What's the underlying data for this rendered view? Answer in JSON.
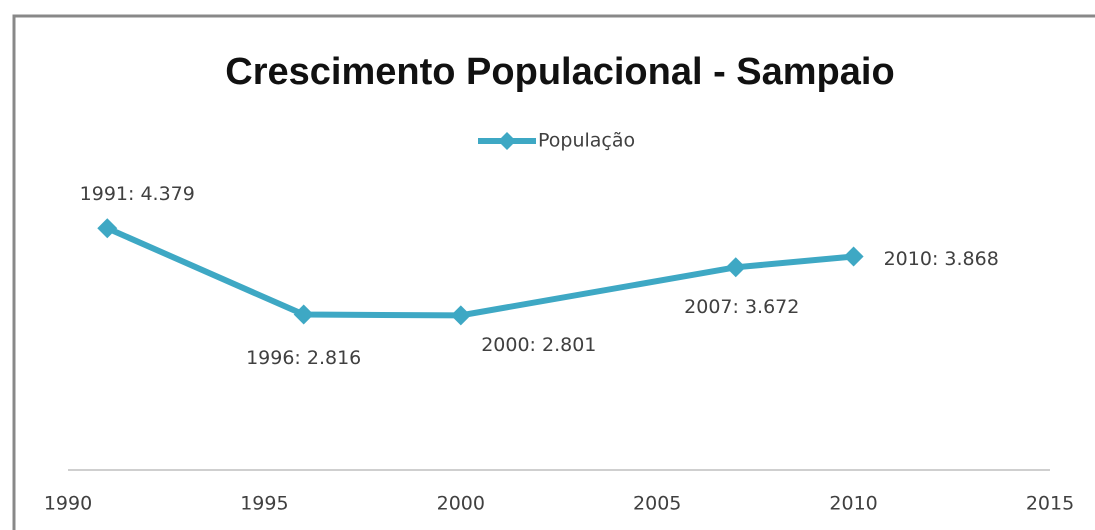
{
  "chart_data": {
    "type": "line",
    "title": "Crescimento Populacional - Sampaio",
    "x": [
      1991,
      1996,
      2000,
      2007,
      2010
    ],
    "series": [
      {
        "name": "População",
        "color": "#3ea8c4",
        "values": [
          4379,
          2816,
          2801,
          3672,
          3868
        ],
        "value_labels": [
          "1991:  4.379",
          "1996:  2.816",
          "2000: 2.801",
          "2007: 3.672",
          "2010: 3.868"
        ]
      }
    ],
    "xlim": [
      1990,
      2015
    ],
    "xticks": [
      1990,
      1995,
      2000,
      2005,
      2010,
      2015
    ],
    "ylim": [
      0,
      5000
    ],
    "legend": "top"
  }
}
